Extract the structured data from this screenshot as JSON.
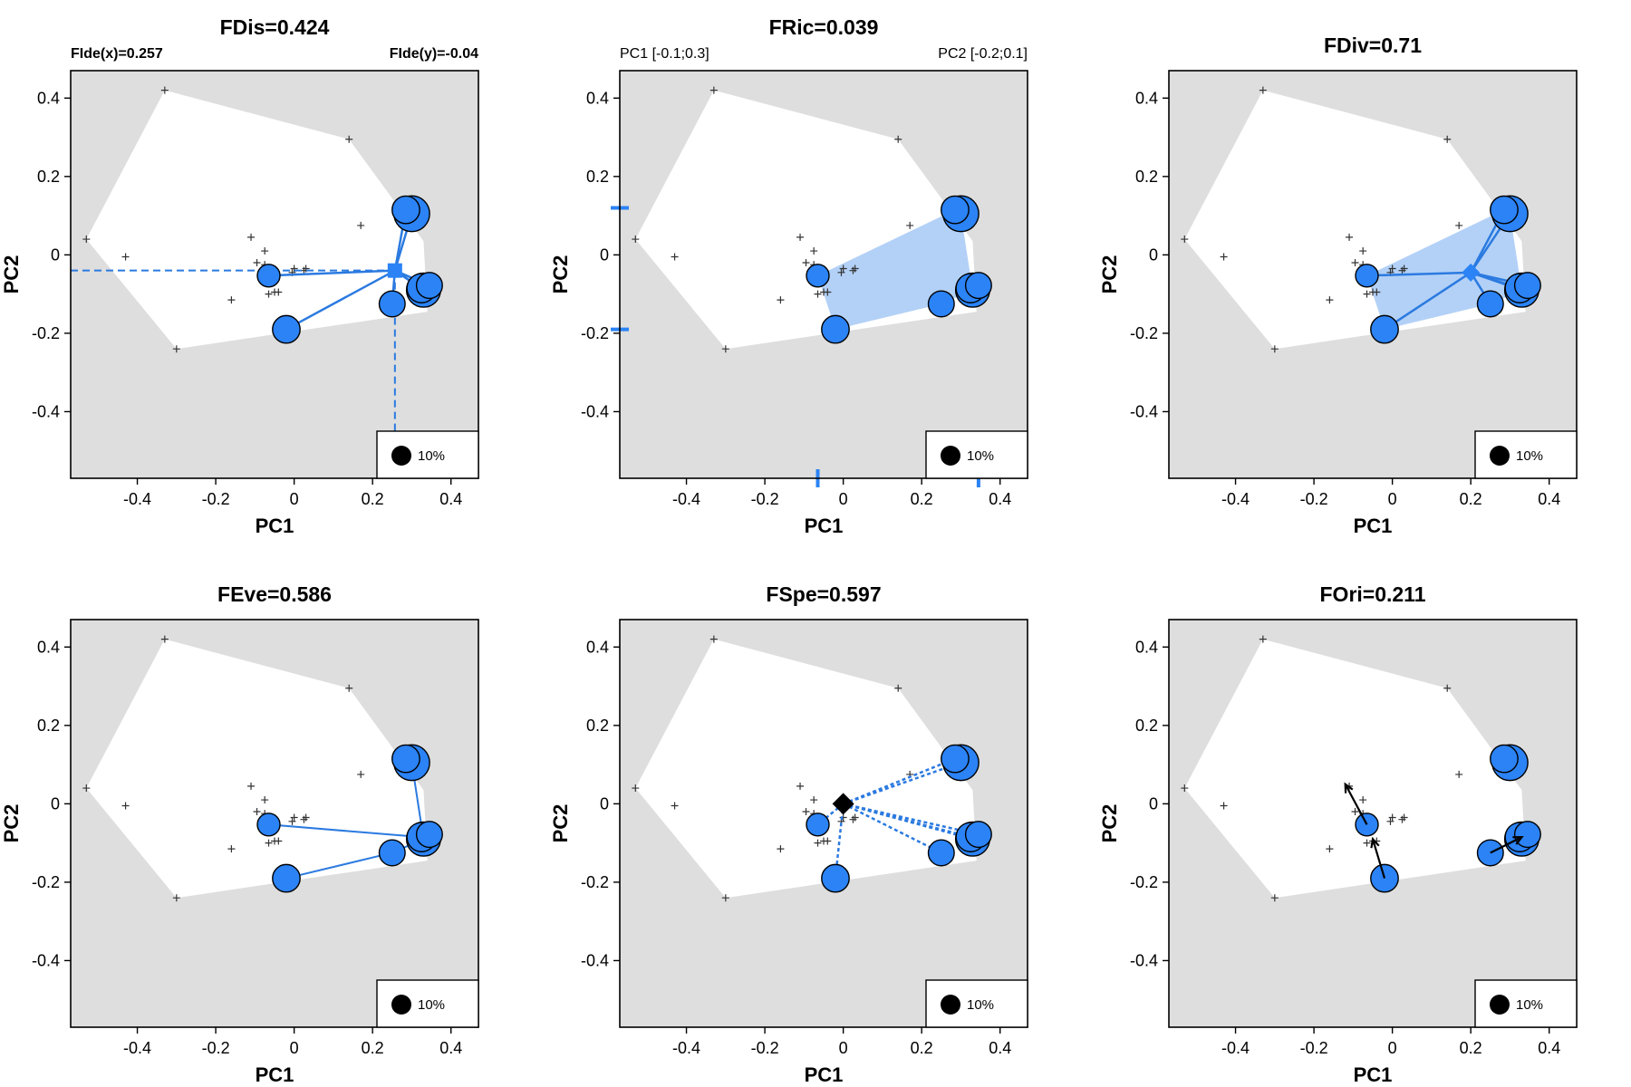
{
  "chart_data": [
    {
      "type": "scatter",
      "title": "FDis=0.424",
      "subtitle_left": "FIde(x)=0.257",
      "subtitle_right": "FIde(y)=-0.04",
      "mode": "fdis",
      "center": [
        0.257,
        -0.04
      ],
      "xlabel": "PC1",
      "ylabel": "PC2",
      "legend": "10%"
    },
    {
      "type": "scatter",
      "title": "FRic=0.039",
      "subtitle_left": "PC1 [-0.1;0.3]",
      "subtitle_right": "PC2 [-0.2;0.1]",
      "mode": "fric",
      "xrange_marks": [
        -0.065,
        0.345
      ],
      "yrange_marks": [
        -0.19,
        0.12
      ],
      "xlabel": "PC1",
      "ylabel": "PC2",
      "legend": "10%"
    },
    {
      "type": "scatter",
      "title": "FDiv=0.71",
      "mode": "fdiv",
      "center": [
        0.2,
        -0.045
      ],
      "xlabel": "PC1",
      "ylabel": "PC2",
      "legend": "10%"
    },
    {
      "type": "scatter",
      "title": "FEve=0.586",
      "mode": "feve",
      "xlabel": "PC1",
      "ylabel": "PC2",
      "legend": "10%"
    },
    {
      "type": "scatter",
      "title": "FSpe=0.597",
      "mode": "fspe",
      "center": [
        0.0,
        0.0
      ],
      "xlabel": "PC1",
      "ylabel": "PC2",
      "legend": "10%"
    },
    {
      "type": "scatter",
      "title": "FOri=0.211",
      "mode": "fori",
      "xlabel": "PC1",
      "ylabel": "PC2",
      "legend": "10%"
    }
  ],
  "shared": {
    "xlim": [
      -0.57,
      0.47
    ],
    "ylim": [
      -0.57,
      0.47
    ],
    "xticks": [
      -0.4,
      -0.2,
      0,
      0.2,
      0.4
    ],
    "xtick_labels": [
      "-0.4",
      "-0.2",
      "0",
      "0.2",
      "0.4"
    ],
    "yticks": [
      0.4,
      0.2,
      0,
      -0.2,
      -0.4
    ],
    "ytick_labels": [
      "0.4",
      "0.2",
      "0",
      "-0.2",
      "-0.4"
    ],
    "hull": [
      [
        -0.53,
        0.04
      ],
      [
        -0.33,
        0.42
      ],
      [
        0.14,
        0.295
      ],
      [
        0.33,
        0.035
      ],
      [
        0.34,
        -0.145
      ],
      [
        -0.3,
        -0.24
      ]
    ],
    "all_species": [
      [
        -0.53,
        0.04
      ],
      [
        -0.43,
        -0.005
      ],
      [
        -0.33,
        0.42
      ],
      [
        -0.3,
        -0.24
      ],
      [
        0.14,
        0.295
      ],
      [
        0.17,
        0.075
      ],
      [
        -0.16,
        -0.115
      ],
      [
        -0.11,
        0.045
      ],
      [
        -0.095,
        -0.02
      ],
      [
        -0.075,
        0.01
      ],
      [
        -0.075,
        -0.025
      ],
      [
        -0.065,
        -0.1
      ],
      [
        -0.05,
        -0.095
      ],
      [
        -0.04,
        -0.095
      ],
      [
        -0.005,
        -0.045
      ],
      [
        0.0,
        -0.035
      ],
      [
        0.025,
        -0.04
      ],
      [
        0.03,
        -0.035
      ]
    ],
    "assemblage": [
      {
        "x": -0.065,
        "y": -0.053,
        "w": 1.0
      },
      {
        "x": -0.02,
        "y": -0.19,
        "w": 1.6
      },
      {
        "x": 0.25,
        "y": -0.125,
        "w": 1.4
      },
      {
        "x": 0.285,
        "y": 0.115,
        "w": 1.6
      },
      {
        "x": 0.3,
        "y": 0.105,
        "w": 2.6
      },
      {
        "x": 0.33,
        "y": -0.09,
        "w": 2.4
      },
      {
        "x": 0.325,
        "y": -0.085,
        "w": 1.8
      },
      {
        "x": 0.345,
        "y": -0.078,
        "w": 1.4
      }
    ],
    "fric_hull_idx": [
      0,
      1,
      2,
      5,
      4,
      3
    ],
    "feve_tree": [
      [
        0,
        6
      ],
      [
        1,
        2
      ],
      [
        2,
        5
      ],
      [
        5,
        4
      ]
    ],
    "fori_arrows": [
      [
        0,
        [
          -0.12,
          0.05
        ]
      ],
      [
        1,
        [
          -0.05,
          -0.09
        ]
      ],
      [
        2,
        [
          0.33,
          -0.085
        ]
      ]
    ],
    "colors": {
      "panel": "#dedede",
      "hull": "#ffffff",
      "point": "#2b83f6",
      "line": "#2b7ae0",
      "fill": "#b3d1f7",
      "tick": "#333333"
    }
  }
}
